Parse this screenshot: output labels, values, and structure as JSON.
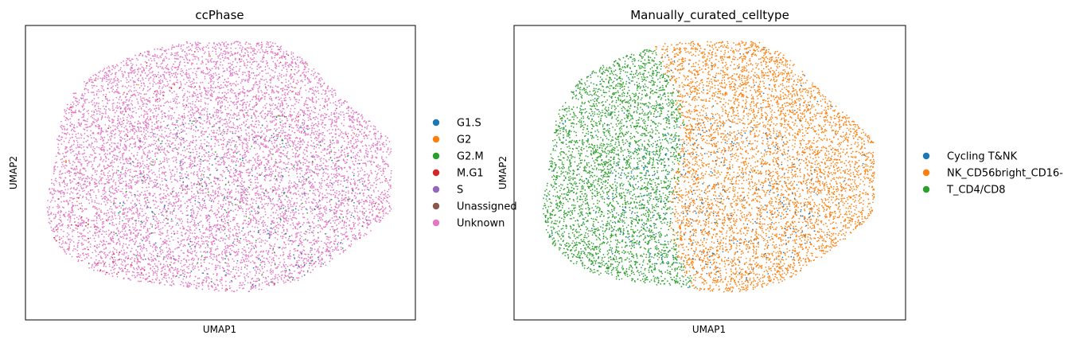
{
  "chart_data": [
    {
      "type": "scatter",
      "title": "ccPhase",
      "xlabel": "UMAP1",
      "ylabel": "UMAP2",
      "xticks": [],
      "yticks": [],
      "legend_position": "right",
      "series": [
        {
          "name": "G1.S",
          "color": "#1f77b4"
        },
        {
          "name": "G2",
          "color": "#ff7f0e"
        },
        {
          "name": "G2.M",
          "color": "#2ca02c"
        },
        {
          "name": "M.G1",
          "color": "#d62728"
        },
        {
          "name": "S",
          "color": "#9467bd"
        },
        {
          "name": "Unassigned",
          "color": "#8c564b"
        },
        {
          "name": "Unknown",
          "color": "#e377c2"
        }
      ]
    },
    {
      "type": "scatter",
      "title": "Manually_curated_celltype",
      "xlabel": "UMAP1",
      "ylabel": "UMAP2",
      "xticks": [],
      "yticks": [],
      "legend_position": "right",
      "series": [
        {
          "name": "Cycling T&NK",
          "color": "#1f77b4"
        },
        {
          "name": "NK_CD56bright_CD16-",
          "color": "#ff7f0e"
        },
        {
          "name": "T_CD4/CD8",
          "color": "#2ca02c"
        }
      ]
    }
  ]
}
